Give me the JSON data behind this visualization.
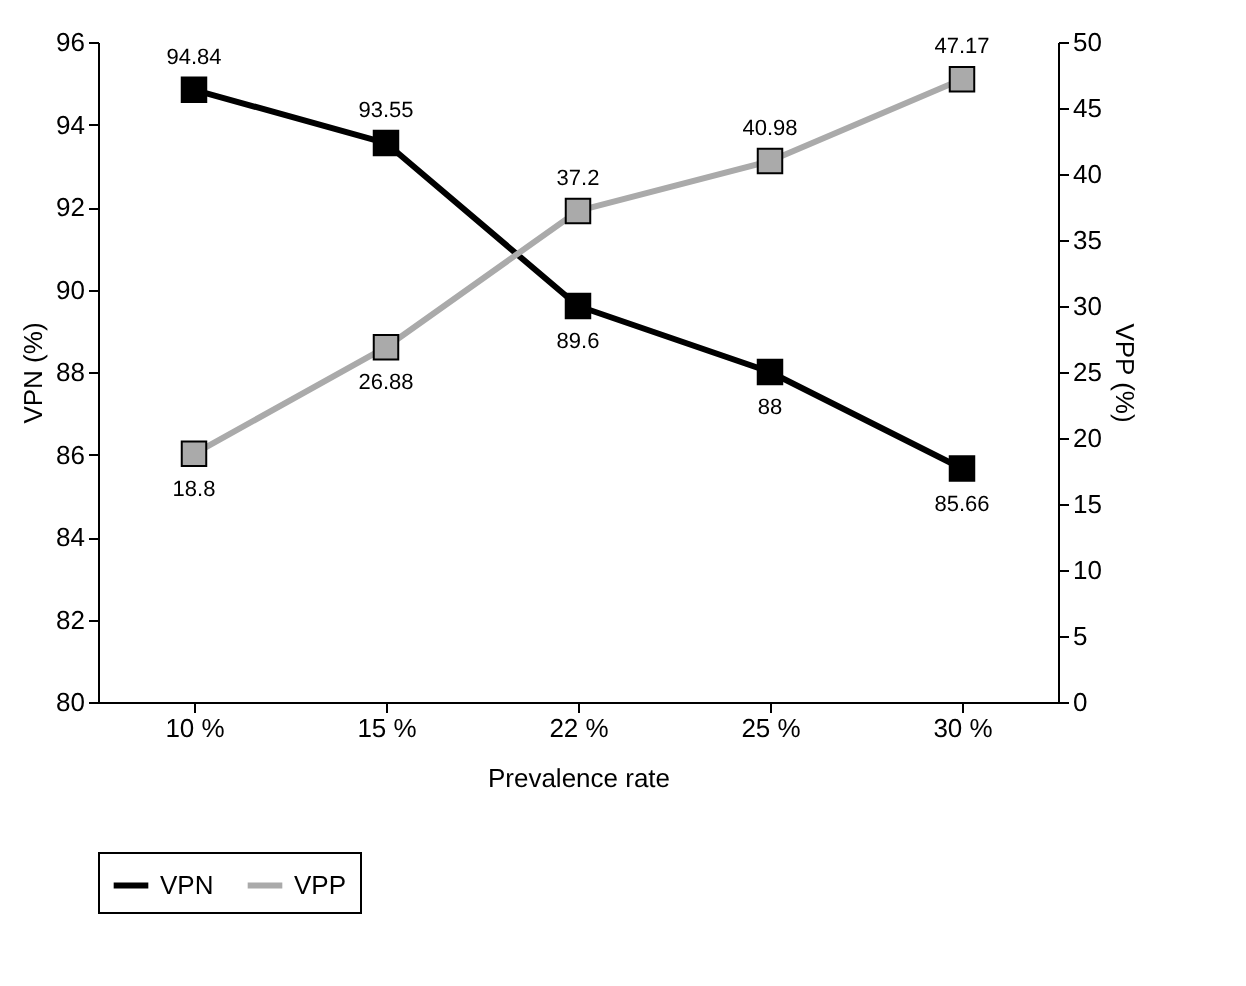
{
  "chart_data": {
    "type": "line",
    "xlabel": "Prevalence rate",
    "ylabel": "VPN (%)",
    "y2label": "VPP (%)",
    "categories": [
      "10 %",
      "15 %",
      "22 %",
      "25 %",
      "30 %"
    ],
    "series": [
      {
        "name": "VPN",
        "color": "#000000",
        "values": [
          94.84,
          93.55,
          89.6,
          88,
          85.66
        ]
      },
      {
        "name": "VPP",
        "color": "#aaaaaa",
        "axis": "y2",
        "values": [
          18.8,
          26.88,
          37.2,
          40.98,
          47.17
        ]
      }
    ],
    "ylim": [
      80,
      96
    ],
    "yticks": [
      80,
      82,
      84,
      86,
      88,
      90,
      92,
      94,
      96
    ],
    "y2lim": [
      0,
      50
    ],
    "y2ticks": [
      0,
      5,
      10,
      15,
      20,
      25,
      30,
      35,
      40,
      45,
      50
    ],
    "data_labels": true,
    "marker": "square",
    "legend": "bottom",
    "grid": false
  }
}
